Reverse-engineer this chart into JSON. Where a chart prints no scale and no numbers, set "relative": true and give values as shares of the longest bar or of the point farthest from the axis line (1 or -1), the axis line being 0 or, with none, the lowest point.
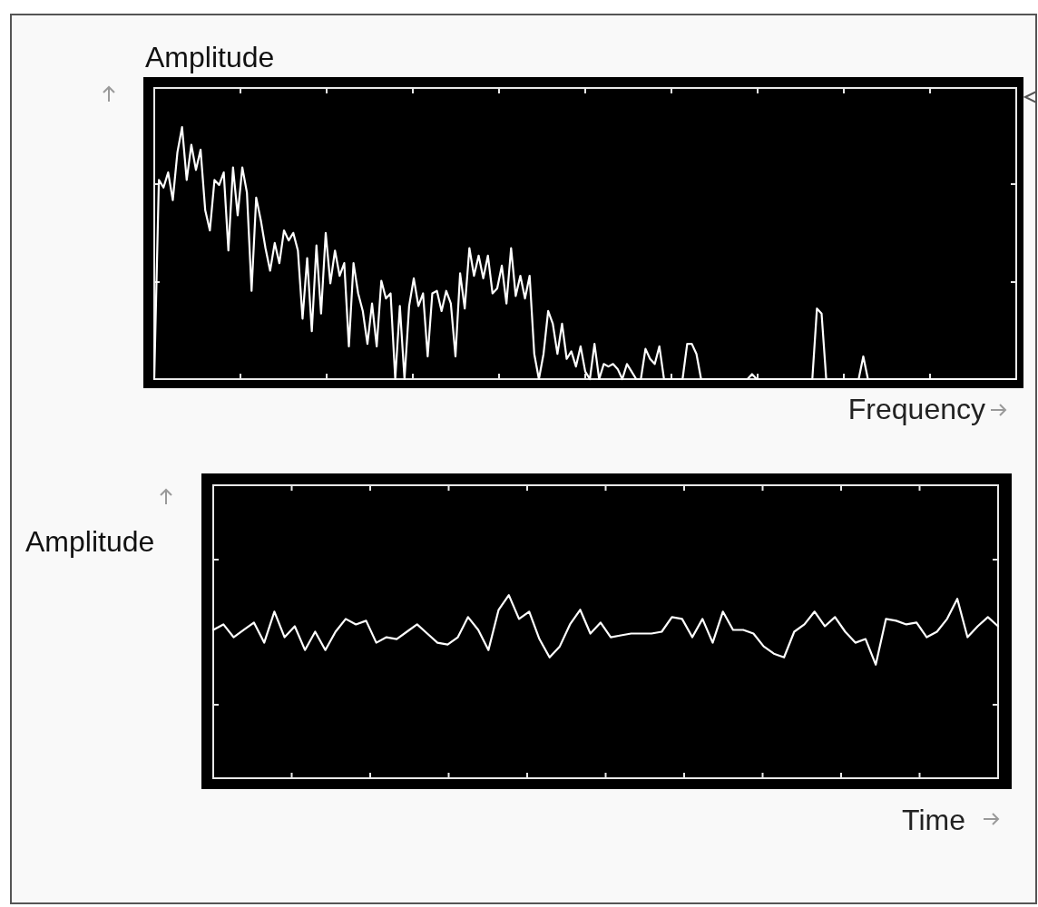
{
  "chart_data": [
    {
      "type": "line",
      "relative": true,
      "ylabel": "Amplitude",
      "xlabel": "Frequency",
      "categories": [
        null,
        null,
        null,
        null,
        null,
        null,
        null,
        null,
        null,
        null,
        null,
        null,
        null,
        null,
        null,
        null,
        null,
        null,
        null,
        null,
        null,
        null,
        null,
        null,
        null,
        null,
        null,
        null,
        null,
        null,
        null,
        null,
        null,
        null,
        null,
        null,
        null,
        null,
        null,
        null,
        null,
        null,
        null,
        null,
        null,
        null,
        null,
        null,
        null,
        null,
        null,
        null,
        null,
        null,
        null,
        null,
        null,
        null,
        null,
        null,
        null,
        null,
        null,
        null,
        null,
        null,
        null,
        null,
        null,
        null,
        null,
        null,
        null,
        null,
        null,
        null,
        null,
        null,
        null,
        null,
        null,
        null,
        null,
        null,
        null,
        null,
        null,
        null,
        null,
        null,
        null,
        null,
        null,
        null,
        null,
        null,
        null,
        null,
        null,
        null,
        null,
        null,
        null,
        null,
        null,
        null,
        null,
        null,
        null,
        null,
        null,
        null,
        null,
        null,
        null,
        null,
        null,
        null,
        null,
        null,
        null,
        null,
        null,
        null,
        null,
        null,
        null,
        null,
        null,
        null,
        null,
        null,
        null,
        null,
        null,
        null,
        null,
        null,
        null,
        null,
        null,
        null,
        null,
        null,
        null,
        null,
        null,
        null,
        null,
        null,
        null,
        null,
        null,
        null,
        null,
        null,
        null,
        null,
        null,
        null,
        null,
        null,
        null,
        null,
        null,
        null,
        null,
        null,
        null,
        null,
        null,
        null,
        null,
        null,
        null,
        null,
        null,
        null,
        null,
        null,
        null,
        null,
        null,
        null,
        null,
        null,
        null
      ],
      "series": [
        {
          "color": "#ffffff",
          "values": [
            0,
            0.79,
            0.76,
            0.82,
            0.71,
            0.9,
            1,
            0.79,
            0.93,
            0.83,
            0.91,
            0.67,
            0.59,
            0.79,
            0.77,
            0.82,
            0.51,
            0.84,
            0.65,
            0.84,
            0.74,
            0.35,
            0.72,
            0.63,
            0.52,
            0.43,
            0.54,
            0.46,
            0.59,
            0.55,
            0.58,
            0.51,
            0.24,
            0.48,
            0.19,
            0.53,
            0.26,
            0.58,
            0.38,
            0.51,
            0.41,
            0.46,
            0.13,
            0.46,
            0.34,
            0.27,
            0.14,
            0.3,
            0.13,
            0.39,
            0.32,
            0.34,
            0,
            0.29,
            0,
            0.29,
            0.4,
            0.29,
            0.34,
            0.09,
            0.34,
            0.35,
            0.27,
            0.35,
            0.3,
            0.09,
            0.42,
            0.28,
            0.52,
            0.41,
            0.49,
            0.4,
            0.49,
            0.34,
            0.36,
            0.45,
            0.3,
            0.52,
            0.33,
            0.41,
            0.32,
            0.41,
            0.1,
            0,
            0.1,
            0.27,
            0.22,
            0.1,
            0.22,
            0.08,
            0.11,
            0.05,
            0.13,
            0.03,
            0,
            0.14,
            0,
            0.06,
            0.05,
            0.06,
            0.04,
            0,
            0.06,
            0.03,
            0,
            0,
            0.12,
            0.08,
            0.06,
            0.13,
            0,
            0,
            0,
            0,
            0,
            0.14,
            0.14,
            0.1,
            0,
            0,
            0,
            0,
            0,
            0,
            0,
            0,
            0,
            0,
            0,
            0.02,
            0,
            0,
            0,
            0,
            0,
            0,
            0,
            0,
            0,
            0,
            0,
            0,
            0,
            0.28,
            0.26,
            0,
            0,
            0,
            0,
            0,
            0,
            0,
            0,
            0.09,
            0,
            0,
            0,
            0,
            0,
            0,
            0,
            0,
            0,
            0,
            0,
            0,
            0,
            0,
            0,
            0,
            0,
            0,
            0,
            0,
            0,
            0,
            0,
            0,
            0,
            0,
            0,
            0,
            0,
            0,
            0,
            0,
            0
          ]
        }
      ]
    },
    {
      "type": "line",
      "relative": true,
      "ylabel": "Amplitude",
      "xlabel": "Time",
      "categories": [
        null,
        null,
        null,
        null,
        null,
        null,
        null,
        null,
        null,
        null,
        null,
        null,
        null,
        null,
        null,
        null,
        null,
        null,
        null,
        null,
        null,
        null,
        null,
        null,
        null,
        null,
        null,
        null,
        null,
        null,
        null,
        null,
        null,
        null,
        null,
        null,
        null,
        null,
        null,
        null,
        null,
        null,
        null,
        null,
        null,
        null,
        null,
        null,
        null,
        null,
        null,
        null,
        null,
        null,
        null,
        null,
        null,
        null,
        null,
        null,
        null,
        null,
        null,
        null,
        null,
        null,
        null,
        null,
        null,
        null,
        null,
        null,
        null,
        null,
        null,
        null,
        null,
        null
      ],
      "series": [
        {
          "color": "#ffffff",
          "values": [
            0.81,
            0.84,
            0.77,
            0.81,
            0.85,
            0.74,
            0.91,
            0.77,
            0.83,
            0.7,
            0.8,
            0.7,
            0.8,
            0.87,
            0.84,
            0.86,
            0.74,
            0.77,
            0.76,
            0.8,
            0.84,
            0.79,
            0.74,
            0.73,
            0.77,
            0.88,
            0.81,
            0.7,
            0.92,
            1,
            0.87,
            0.91,
            0.76,
            0.66,
            0.72,
            0.84,
            0.92,
            0.79,
            0.85,
            0.77,
            0.78,
            0.79,
            0.79,
            0.79,
            0.8,
            0.88,
            0.87,
            0.77,
            0.87,
            0.74,
            0.91,
            0.81,
            0.81,
            0.79,
            0.72,
            0.68,
            0.66,
            0.8,
            0.84,
            0.91,
            0.83,
            0.88,
            0.8,
            0.74,
            0.76,
            0.62,
            0.87,
            0.86,
            0.84,
            0.85,
            0.77,
            0.8,
            0.87,
            0.98,
            0.77,
            0.83,
            0.88,
            0.83
          ]
        }
      ]
    }
  ]
}
